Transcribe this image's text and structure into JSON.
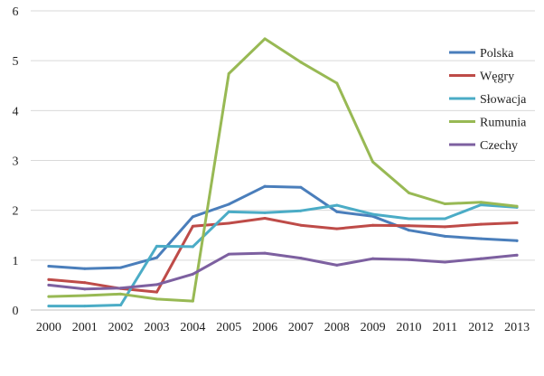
{
  "chart_data": {
    "type": "line",
    "title": "",
    "xlabel": "",
    "ylabel": "",
    "x": [
      "2000",
      "2001",
      "2002",
      "2003",
      "2004",
      "2005",
      "2006",
      "2007",
      "2008",
      "2009",
      "2010",
      "2011",
      "2012",
      "2013"
    ],
    "ylim": [
      0,
      6
    ],
    "yticks": [
      "0",
      "1",
      "2",
      "3",
      "4",
      "5",
      "6"
    ],
    "grid": true,
    "legend_position": "top-right",
    "series": [
      {
        "name": "Polska",
        "color": "#4a7ebb",
        "values": [
          0.88,
          0.83,
          0.85,
          1.05,
          1.87,
          2.12,
          2.48,
          2.46,
          1.97,
          1.88,
          1.6,
          1.48,
          1.43,
          1.39
        ]
      },
      {
        "name": "Węgry",
        "color": "#be4b48",
        "values": [
          0.61,
          0.55,
          0.43,
          0.36,
          1.68,
          1.74,
          1.84,
          1.7,
          1.63,
          1.7,
          1.69,
          1.67,
          1.72,
          1.75
        ]
      },
      {
        "name": "Słowacja",
        "color": "#4bacc6",
        "values": [
          0.08,
          0.08,
          0.1,
          1.28,
          1.27,
          1.97,
          1.95,
          1.99,
          2.1,
          1.92,
          1.83,
          1.83,
          2.11,
          2.06
        ]
      },
      {
        "name": "Rumunia",
        "color": "#98b954",
        "values": [
          0.27,
          0.29,
          0.32,
          0.22,
          0.18,
          4.74,
          5.44,
          4.97,
          4.55,
          2.97,
          2.35,
          2.13,
          2.16,
          2.08
        ]
      },
      {
        "name": "Czechy",
        "color": "#7d60a0",
        "values": [
          0.5,
          0.42,
          0.44,
          0.51,
          0.72,
          1.12,
          1.14,
          1.04,
          0.9,
          1.03,
          1.01,
          0.96,
          1.03,
          1.1
        ]
      }
    ]
  }
}
